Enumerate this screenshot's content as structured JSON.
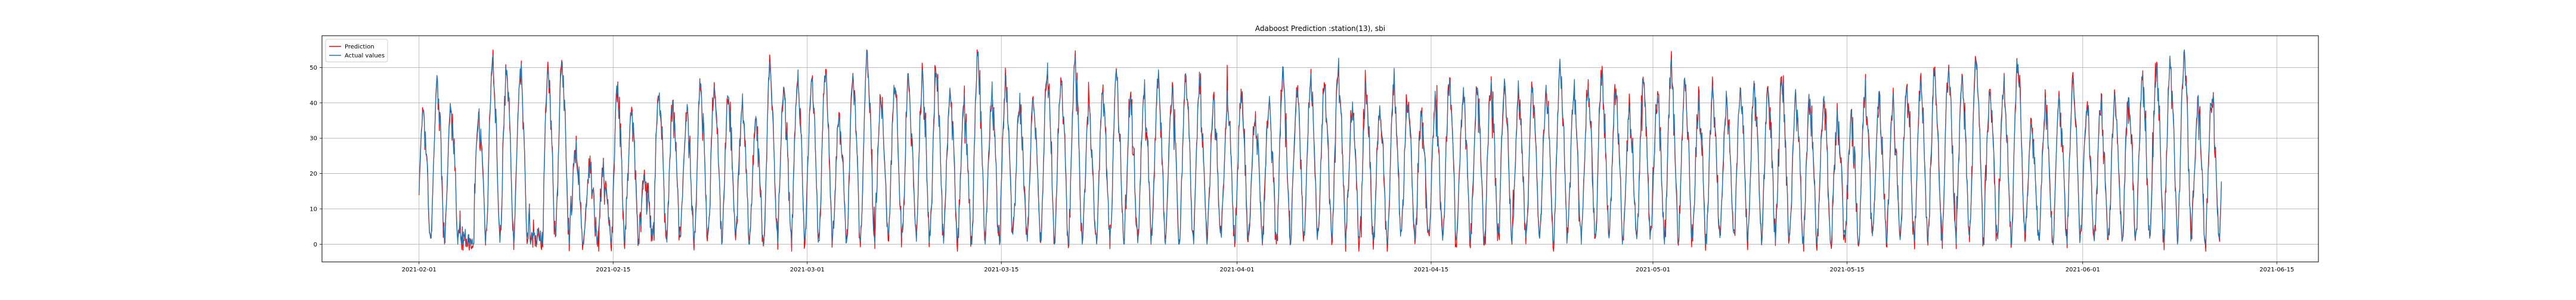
{
  "chart_data": {
    "type": "line",
    "title": "Adaboost Prediction :station(13), sbi",
    "xlabel": "",
    "ylabel": "",
    "x_ticks": [
      "2021-02-01",
      "2021-02-15",
      "2021-03-01",
      "2021-03-15",
      "2021-04-01",
      "2021-04-15",
      "2021-05-01",
      "2021-05-15",
      "2021-06-01",
      "2021-06-15"
    ],
    "y_ticks": [
      0,
      10,
      20,
      30,
      40,
      50
    ],
    "xlim": [
      "2021-01-25",
      "2021-06-18"
    ],
    "ylim": [
      -5,
      59
    ],
    "x_range": [
      "2021-02-01",
      "2021-06-11"
    ],
    "grid": true,
    "legend_position": "top-left",
    "series": [
      {
        "name": "Prediction",
        "color": "#ff0000"
      },
      {
        "name": "Actual values",
        "color": "#1f77b4"
      }
    ],
    "observed_peaks_daily_2021-02-01_to_2021-06-11": [
      38,
      47,
      40,
      2,
      37,
      55,
      50,
      49,
      2,
      50,
      51,
      27,
      22,
      22,
      45,
      38,
      20,
      45,
      40,
      38,
      47,
      45,
      43,
      41,
      35,
      50,
      45,
      48,
      48,
      49,
      38,
      48,
      55,
      40,
      45,
      48,
      47,
      48,
      44,
      40,
      55,
      43,
      46,
      40,
      42,
      49,
      48,
      51,
      38,
      42,
      48,
      40,
      44,
      48,
      42,
      48,
      47,
      41,
      42,
      42,
      38,
      40,
      48,
      44,
      48,
      45,
      50,
      38,
      44,
      38,
      47,
      40,
      38,
      41,
      45,
      43,
      45,
      46,
      45,
      44,
      45,
      43,
      51,
      44,
      45,
      48,
      44,
      38,
      47,
      42,
      50,
      46,
      41,
      43,
      41,
      44,
      45,
      45,
      47,
      42,
      42,
      40,
      36,
      36,
      45,
      42,
      40,
      47,
      45,
      49,
      50,
      47,
      52,
      44,
      45,
      52,
      34,
      40,
      42,
      49,
      40,
      40,
      41,
      44,
      47,
      50,
      52,
      53,
      40,
      42,
      44,
      45,
      44,
      44,
      40,
      45,
      40,
      38,
      36,
      45,
      45
    ]
  }
}
